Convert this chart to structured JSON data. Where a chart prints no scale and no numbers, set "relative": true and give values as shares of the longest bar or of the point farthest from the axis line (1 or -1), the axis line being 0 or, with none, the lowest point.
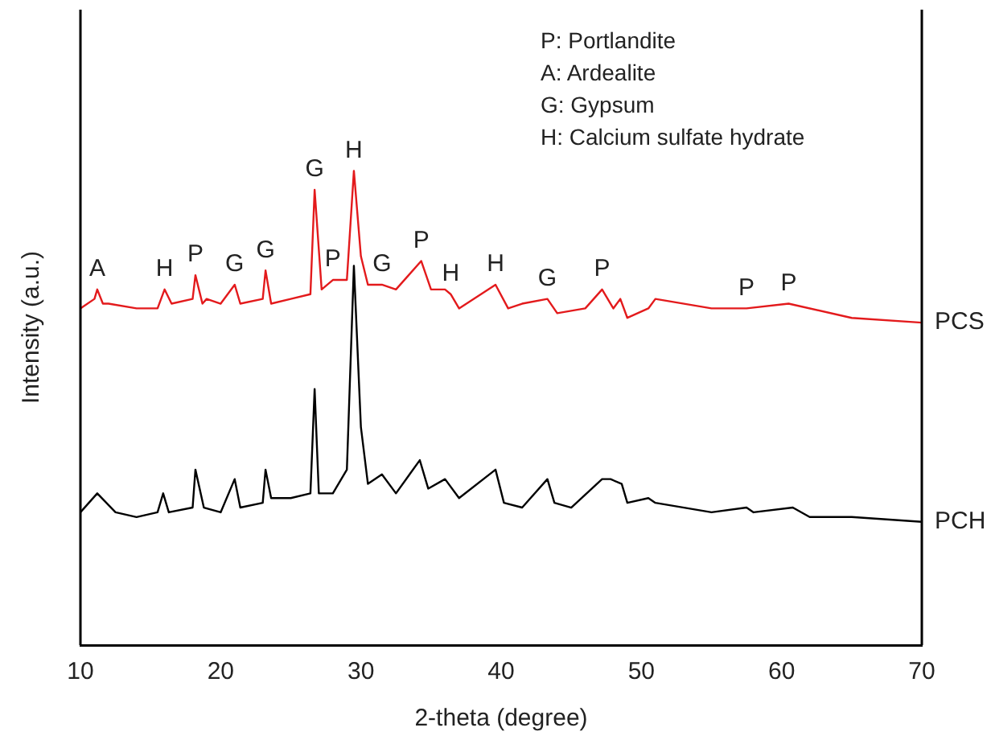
{
  "chart_data": {
    "type": "line",
    "xlabel": "2-theta (degree)",
    "ylabel": "Intensity (a.u.)",
    "relative": true,
    "xlim": [
      10,
      70
    ],
    "xticks": [
      10,
      20,
      30,
      40,
      50,
      60,
      70
    ],
    "tick_labels": "x",
    "grid": false,
    "legend": false,
    "marker": "none",
    "line_style": "solid",
    "series": [
      {
        "name": "PCS",
        "color": "#e31a1c",
        "x": [
          10,
          11,
          11.2,
          11.6,
          12,
          14,
          15.5,
          16,
          16.5,
          18,
          18.2,
          18.7,
          19,
          20,
          21,
          21.4,
          23,
          23.2,
          23.6,
          25,
          26.4,
          26.7,
          27.2,
          28,
          29,
          29.5,
          30,
          30.5,
          31.5,
          32.5,
          34.3,
          35,
          36,
          36.4,
          37,
          39.6,
          40.5,
          41.5,
          43.3,
          44,
          46,
          47.2,
          48,
          48.5,
          49,
          50.5,
          51,
          55,
          57.5,
          60.5,
          65,
          70
        ],
        "values": [
          0.71,
          0.73,
          0.75,
          0.72,
          0.72,
          0.71,
          0.71,
          0.75,
          0.72,
          0.73,
          0.78,
          0.72,
          0.73,
          0.72,
          0.76,
          0.72,
          0.73,
          0.79,
          0.72,
          0.73,
          0.74,
          0.96,
          0.75,
          0.77,
          0.77,
          1,
          0.82,
          0.76,
          0.76,
          0.75,
          0.81,
          0.75,
          0.75,
          0.74,
          0.71,
          0.76,
          0.71,
          0.72,
          0.73,
          0.7,
          0.71,
          0.75,
          0.71,
          0.73,
          0.69,
          0.71,
          0.73,
          0.71,
          0.71,
          0.72,
          0.69,
          0.68
        ]
      },
      {
        "name": "PCH",
        "color": "#000000",
        "x": [
          10,
          11.2,
          12.5,
          14,
          15.5,
          15.9,
          16.3,
          18,
          18.2,
          18.8,
          20,
          21,
          21.4,
          23,
          23.2,
          23.6,
          25,
          26.4,
          26.7,
          27,
          28,
          29,
          29.5,
          30,
          30.5,
          31.5,
          32.5,
          34.2,
          34.8,
          36,
          37,
          39.6,
          40.2,
          41.5,
          43.3,
          43.8,
          45,
          47.2,
          47.8,
          48.6,
          49,
          50.5,
          51,
          55,
          57.5,
          58,
          60.8,
          62,
          65,
          70
        ],
        "values": [
          0.28,
          0.32,
          0.28,
          0.27,
          0.28,
          0.32,
          0.28,
          0.29,
          0.37,
          0.29,
          0.28,
          0.35,
          0.29,
          0.3,
          0.37,
          0.31,
          0.31,
          0.32,
          0.54,
          0.32,
          0.32,
          0.37,
          0.8,
          0.46,
          0.34,
          0.36,
          0.32,
          0.39,
          0.33,
          0.35,
          0.31,
          0.37,
          0.3,
          0.29,
          0.35,
          0.3,
          0.29,
          0.35,
          0.35,
          0.34,
          0.3,
          0.31,
          0.3,
          0.28,
          0.29,
          0.28,
          0.29,
          0.27,
          0.27,
          0.26
        ]
      }
    ],
    "annotations": [
      "P: Portlandite",
      "A: Ardealite",
      "G: Gypsum",
      "H: Calcium sulfate hydrate",
      {
        "text": "A",
        "x": 11.2,
        "y": 0.75
      },
      {
        "text": "H",
        "x": 16,
        "y": 0.75
      },
      {
        "text": "P",
        "x": 18.2,
        "y": 0.78
      },
      {
        "text": "G",
        "x": 21,
        "y": 0.76
      },
      {
        "text": "G",
        "x": 23.2,
        "y": 0.79
      },
      {
        "text": "G",
        "x": 26.7,
        "y": 0.96
      },
      {
        "text": "P",
        "x": 28,
        "y": 0.77
      },
      {
        "text": "H",
        "x": 29.5,
        "y": 1
      },
      {
        "text": "G",
        "x": 31.5,
        "y": 0.76
      },
      {
        "text": "P",
        "x": 34.3,
        "y": 0.81
      },
      {
        "text": "H",
        "x": 36.4,
        "y": 0.74
      },
      {
        "text": "H",
        "x": 39.6,
        "y": 0.76
      },
      {
        "text": "G",
        "x": 43.3,
        "y": 0.73
      },
      {
        "text": "P",
        "x": 47.2,
        "y": 0.75
      },
      {
        "text": "P",
        "x": 57.5,
        "y": 0.71
      },
      {
        "text": "P",
        "x": 60.5,
        "y": 0.72
      }
    ]
  }
}
